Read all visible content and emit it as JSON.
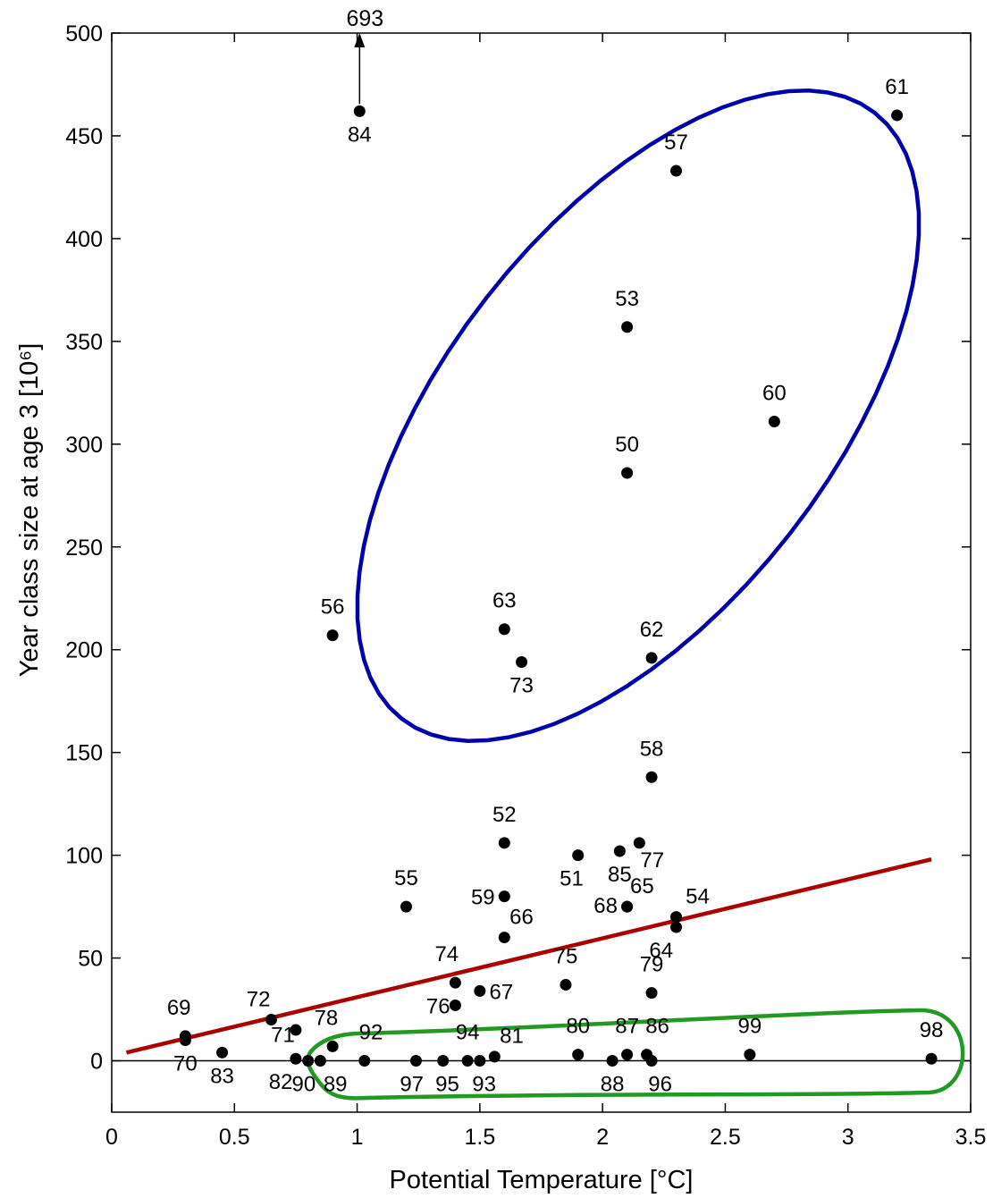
{
  "chart_data": {
    "type": "scatter",
    "xlabel": "Potential Temperature [°C]",
    "ylabel": "Year class size at age 3 [10⁶]",
    "xlim": [
      0,
      3.5
    ],
    "ylim": [
      -25,
      500
    ],
    "xticks": [
      "0",
      "0.5",
      "1",
      "1.5",
      "2",
      "2.5",
      "3",
      "3.5"
    ],
    "yticks": [
      "0",
      "50",
      "100",
      "150",
      "200",
      "250",
      "300",
      "350",
      "400",
      "450",
      "500"
    ],
    "points": [
      {
        "label": "50",
        "x": 2.1,
        "y": 286,
        "lx": 0,
        "ly": -1
      },
      {
        "label": "51",
        "x": 1.9,
        "y": 100,
        "lx": -0.3,
        "ly": 1
      },
      {
        "label": "52",
        "x": 1.6,
        "y": 106,
        "lx": 0,
        "ly": -1
      },
      {
        "label": "53",
        "x": 2.1,
        "y": 357,
        "lx": 0,
        "ly": -1
      },
      {
        "label": "54",
        "x": 2.3,
        "y": 70,
        "lx": 1,
        "ly": -0.6
      },
      {
        "label": "55",
        "x": 1.2,
        "y": 75,
        "lx": 0,
        "ly": -1
      },
      {
        "label": "56",
        "x": 0.9,
        "y": 207,
        "lx": 0,
        "ly": -1
      },
      {
        "label": "57",
        "x": 2.3,
        "y": 433,
        "lx": 0,
        "ly": -1
      },
      {
        "label": "58",
        "x": 2.2,
        "y": 138,
        "lx": 0,
        "ly": -1
      },
      {
        "label": "59",
        "x": 1.6,
        "y": 80,
        "lx": -1,
        "ly": 0
      },
      {
        "label": "60",
        "x": 2.7,
        "y": 311,
        "lx": 0,
        "ly": -1
      },
      {
        "label": "61",
        "x": 3.2,
        "y": 460,
        "lx": 0,
        "ly": -1
      },
      {
        "label": "62",
        "x": 2.2,
        "y": 196,
        "lx": 0,
        "ly": -1
      },
      {
        "label": "63",
        "x": 1.6,
        "y": 210,
        "lx": 0,
        "ly": -1
      },
      {
        "label": "64",
        "x": 2.3,
        "y": 65,
        "lx": -0.7,
        "ly": 1
      },
      {
        "label": "65",
        "x": 2.1,
        "y": 75,
        "lx": 0.7,
        "ly": -0.6
      },
      {
        "label": "66",
        "x": 1.6,
        "y": 60,
        "lx": 0.8,
        "ly": -0.6
      },
      {
        "label": "67",
        "x": 1.5,
        "y": 34,
        "lx": 1,
        "ly": 0
      },
      {
        "label": "68",
        "x": 2.1,
        "y": 75,
        "lx": -1,
        "ly": 0.2
      },
      {
        "label": "69",
        "x": 0.3,
        "y": 12,
        "lx": -0.3,
        "ly": -1
      },
      {
        "label": "70",
        "x": 0.3,
        "y": 10,
        "lx": 0,
        "ly": 1
      },
      {
        "label": "71",
        "x": 0.75,
        "y": 15,
        "lx": -0.6,
        "ly": 0.4
      },
      {
        "label": "72",
        "x": 0.65,
        "y": 20,
        "lx": -0.6,
        "ly": -0.6
      },
      {
        "label": "73",
        "x": 1.67,
        "y": 194,
        "lx": 0,
        "ly": 1
      },
      {
        "label": "74",
        "x": 1.4,
        "y": 38,
        "lx": -0.4,
        "ly": -1
      },
      {
        "label": "75",
        "x": 1.85,
        "y": 37,
        "lx": 0,
        "ly": -1
      },
      {
        "label": "76",
        "x": 1.4,
        "y": 27,
        "lx": -0.8,
        "ly": 0
      },
      {
        "label": "77",
        "x": 2.15,
        "y": 106,
        "lx": 0.6,
        "ly": 0.8
      },
      {
        "label": "78",
        "x": 0.9,
        "y": 7,
        "lx": -0.3,
        "ly": -1
      },
      {
        "label": "79",
        "x": 2.2,
        "y": 33,
        "lx": 0,
        "ly": -1
      },
      {
        "label": "80",
        "x": 1.9,
        "y": 3,
        "lx": 0,
        "ly": -1
      },
      {
        "label": "81",
        "x": 1.56,
        "y": 2,
        "lx": 0.8,
        "ly": -0.6
      },
      {
        "label": "82",
        "x": 0.75,
        "y": 1,
        "lx": -0.7,
        "ly": 1
      },
      {
        "label": "83",
        "x": 0.45,
        "y": 4,
        "lx": 0,
        "ly": 1
      },
      {
        "label": "84",
        "x": 1.01,
        "y": 462,
        "lx": 0,
        "ly": 1
      },
      {
        "label": "85",
        "x": 2.07,
        "y": 102,
        "lx": 0,
        "ly": 1
      },
      {
        "label": "86",
        "x": 2.18,
        "y": 3,
        "lx": 0.5,
        "ly": -1
      },
      {
        "label": "87",
        "x": 2.1,
        "y": 3,
        "lx": 0,
        "ly": -1
      },
      {
        "label": "88",
        "x": 2.04,
        "y": 0,
        "lx": 0,
        "ly": 1
      },
      {
        "label": "89",
        "x": 0.85,
        "y": 0,
        "lx": 0.7,
        "ly": 1
      },
      {
        "label": "90",
        "x": 0.8,
        "y": 0,
        "lx": -0.2,
        "ly": 1
      },
      {
        "label": "92",
        "x": 1.03,
        "y": 0,
        "lx": 0.3,
        "ly": -1
      },
      {
        "label": "93",
        "x": 1.5,
        "y": 0,
        "lx": 0.2,
        "ly": 1
      },
      {
        "label": "94",
        "x": 1.45,
        "y": 0,
        "lx": 0,
        "ly": -1
      },
      {
        "label": "95",
        "x": 1.35,
        "y": 0,
        "lx": 0.2,
        "ly": 1
      },
      {
        "label": "96",
        "x": 2.2,
        "y": 0,
        "lx": 0.4,
        "ly": 1
      },
      {
        "label": "97",
        "x": 1.24,
        "y": 0,
        "lx": -0.2,
        "ly": 1
      },
      {
        "label": "98",
        "x": 3.34,
        "y": 1,
        "lx": 0,
        "ly": -1
      },
      {
        "label": "99",
        "x": 2.6,
        "y": 3,
        "lx": 0,
        "ly": -1
      }
    ],
    "arrow": {
      "label": "693",
      "x": 1.01,
      "from_y": 462,
      "to_y": 500
    },
    "regression_line": {
      "x": [
        0.06,
        3.34
      ],
      "y": [
        4,
        98
      ],
      "color": "#aa0000"
    },
    "ellipse_high": {
      "color": "#0000aa"
    },
    "loop_low": {
      "color": "#229922"
    },
    "zero_line": {
      "y": 0
    }
  }
}
